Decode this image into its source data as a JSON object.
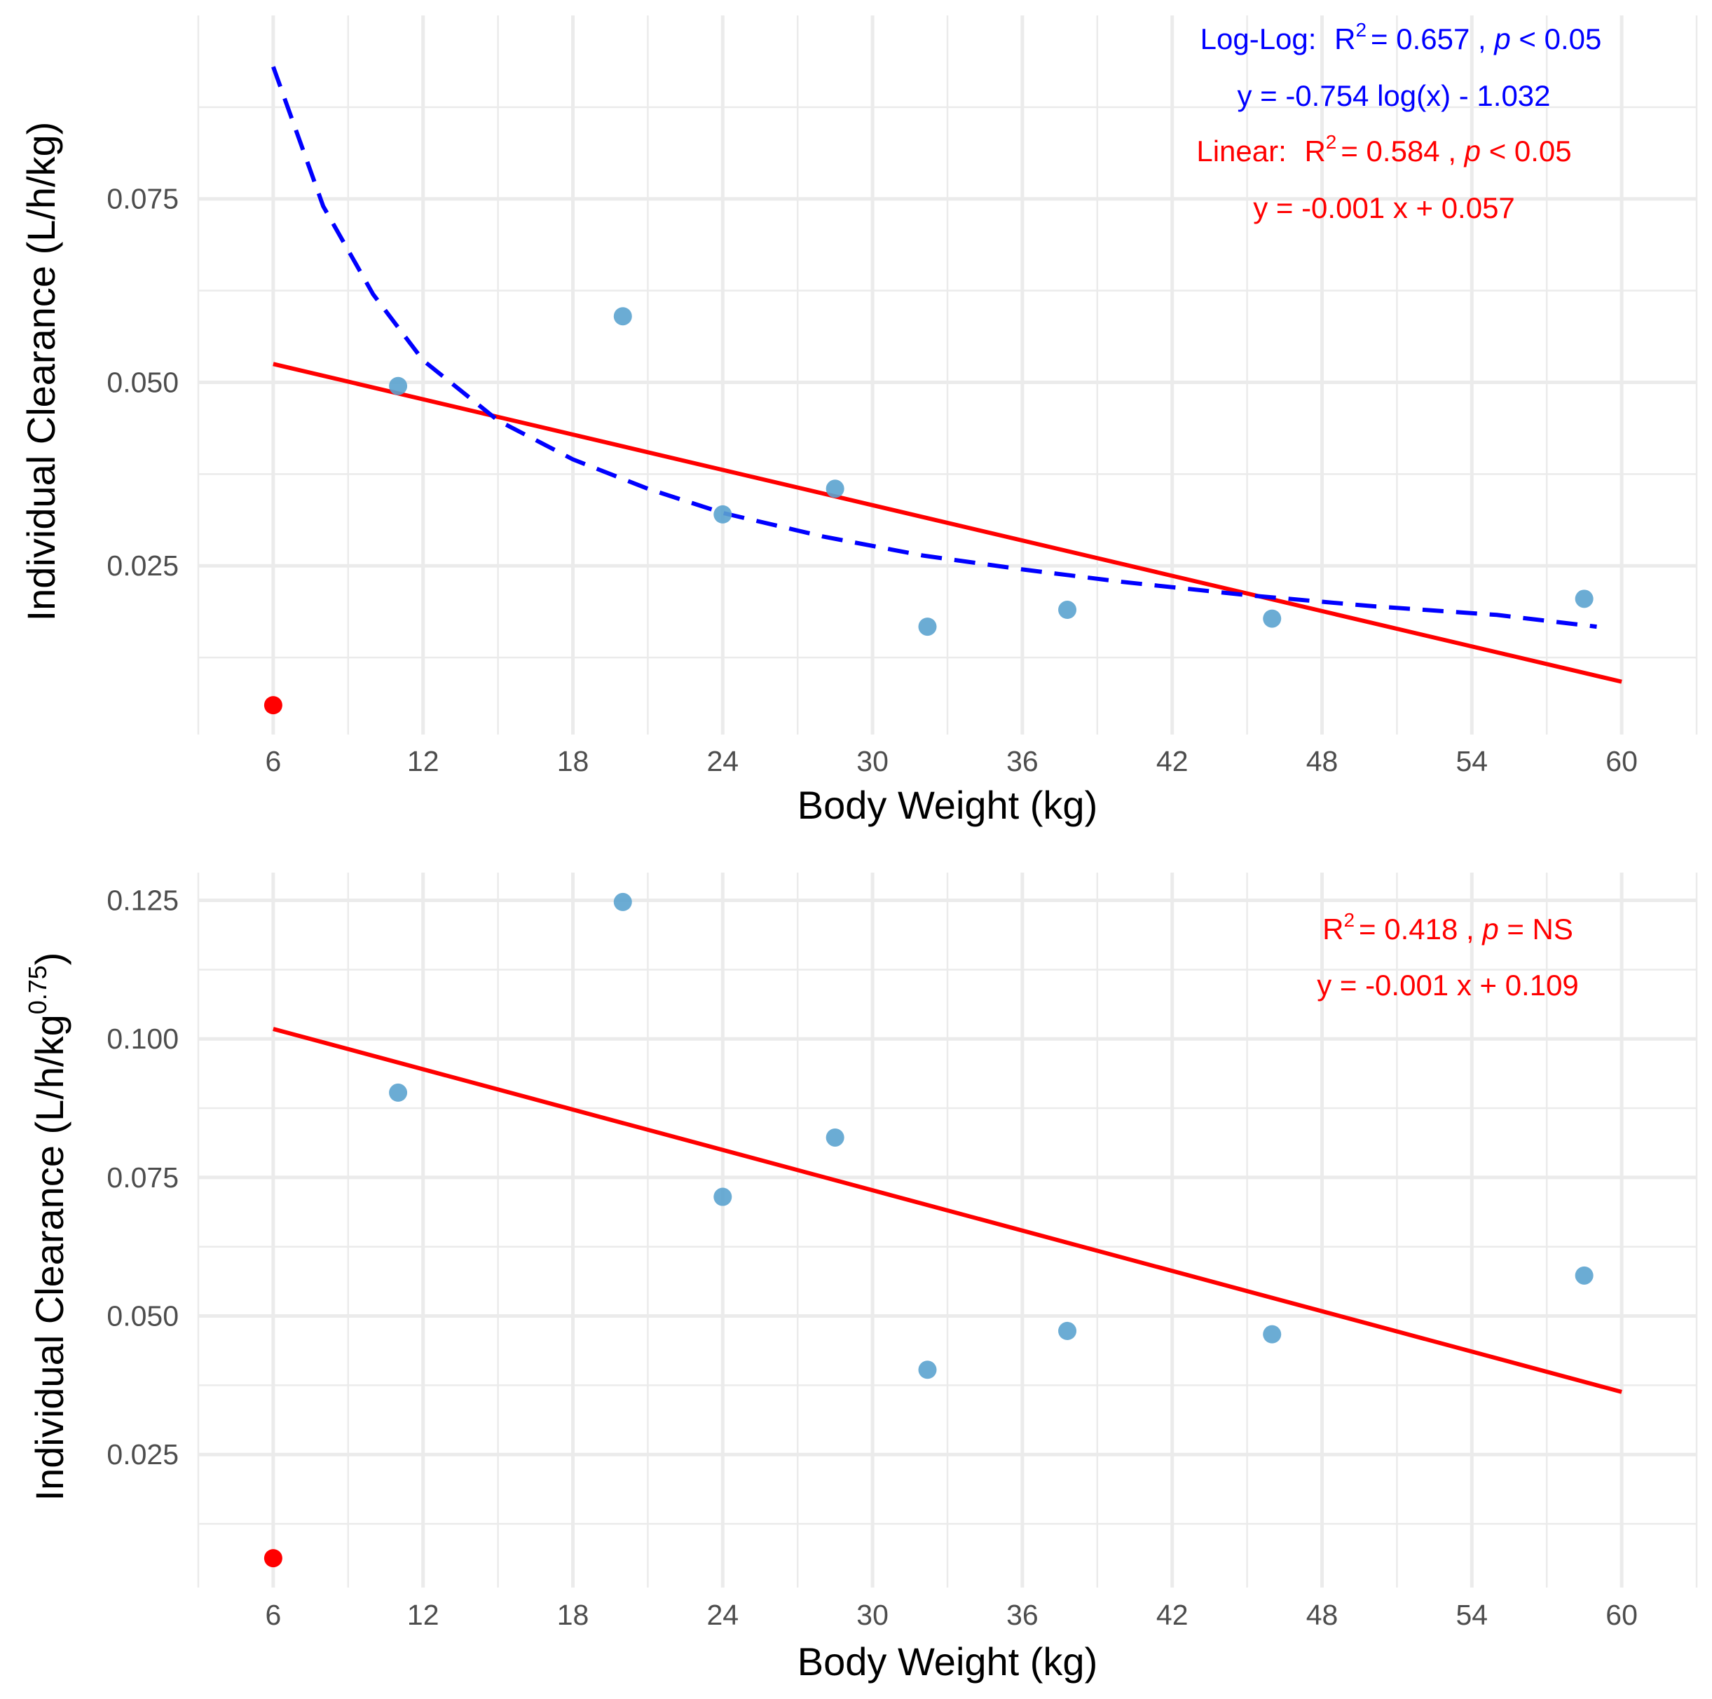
{
  "chart_data": [
    {
      "type": "scatter",
      "xlabel": "Body Weight (kg)",
      "ylabel": "Individual Clearance (L/h/kg)",
      "xlim": [
        3,
        63
      ],
      "ylim": [
        0.002,
        0.1
      ],
      "x_ticks": [
        6,
        12,
        18,
        24,
        30,
        36,
        42,
        48,
        54,
        60
      ],
      "x_tick_labels": [
        "6",
        "12",
        "18",
        "24",
        "30",
        "36",
        "42",
        "48",
        "54",
        "60"
      ],
      "y_ticks": [
        0.025,
        0.05,
        0.075
      ],
      "y_tick_labels": [
        "0.025",
        "0.050",
        "0.075"
      ],
      "grid": true,
      "colors": {
        "points": "#5ba3cf",
        "outlier": "#ff0000",
        "linear": "#ff0000",
        "loglog": "#0000ff"
      },
      "points": [
        {
          "x": 11,
          "y": 0.0495
        },
        {
          "x": 20,
          "y": 0.059
        },
        {
          "x": 24,
          "y": 0.032
        },
        {
          "x": 28.5,
          "y": 0.0355
        },
        {
          "x": 32.2,
          "y": 0.0167
        },
        {
          "x": 37.8,
          "y": 0.019
        },
        {
          "x": 46,
          "y": 0.0178
        },
        {
          "x": 58.5,
          "y": 0.0205
        }
      ],
      "outlier_points": [
        {
          "x": 6,
          "y": 0.006
        }
      ],
      "linear_fit": {
        "x": [
          6,
          60
        ],
        "y": [
          0.0525,
          0.0092
        ]
      },
      "loglog_fit": {
        "x": [
          6,
          8,
          10,
          12,
          15,
          18,
          21,
          24,
          28,
          32,
          36,
          40,
          45,
          50,
          55,
          59
        ],
        "y": [
          0.093,
          0.074,
          0.062,
          0.053,
          0.0448,
          0.0395,
          0.0355,
          0.0322,
          0.029,
          0.0264,
          0.0245,
          0.0228,
          0.021,
          0.0195,
          0.0183,
          0.0167
        ]
      },
      "annotations": {
        "loglog_stats": {
          "label": "Log-Log:",
          "r": "R",
          "sup": "2",
          "value": "= 0.657 ,",
          "p": "p",
          "pval": "< 0.05"
        },
        "loglog_eq": "y = -0.754 log(x) - 1.032",
        "linear_stats": {
          "label": "Linear:",
          "r": "R",
          "sup": "2",
          "value": "= 0.584 ,",
          "p": "p",
          "pval": "< 0.05"
        },
        "linear_eq": "y = -0.001 x + 0.057"
      }
    },
    {
      "type": "scatter",
      "xlabel": "Body Weight (kg)",
      "ylabel_main": "Individual Clearance (L/h/kg",
      "ylabel_sup": "0.75",
      "ylabel_end": ")",
      "xlim": [
        3,
        63
      ],
      "ylim": [
        0.001,
        0.13
      ],
      "x_ticks": [
        6,
        12,
        18,
        24,
        30,
        36,
        42,
        48,
        54,
        60
      ],
      "x_tick_labels": [
        "6",
        "12",
        "18",
        "24",
        "30",
        "36",
        "42",
        "48",
        "54",
        "60"
      ],
      "y_ticks": [
        0.025,
        0.05,
        0.075,
        0.1,
        0.125
      ],
      "y_tick_labels": [
        "0.025",
        "0.050",
        "0.075",
        "0.100",
        "0.125"
      ],
      "grid": true,
      "colors": {
        "points": "#5ba3cf",
        "outlier": "#ff0000",
        "linear": "#ff0000"
      },
      "points": [
        {
          "x": 11,
          "y": 0.0903
        },
        {
          "x": 20,
          "y": 0.1247
        },
        {
          "x": 24,
          "y": 0.0715
        },
        {
          "x": 28.5,
          "y": 0.0822
        },
        {
          "x": 32.2,
          "y": 0.0403
        },
        {
          "x": 37.8,
          "y": 0.0473
        },
        {
          "x": 46,
          "y": 0.0467
        },
        {
          "x": 58.5,
          "y": 0.0573
        }
      ],
      "outlier_points": [
        {
          "x": 6,
          "y": 0.0063
        }
      ],
      "linear_fit": {
        "x": [
          6,
          60
        ],
        "y": [
          0.1018,
          0.0363
        ]
      },
      "annotations": {
        "stats": {
          "r": "R",
          "sup": "2",
          "value": "= 0.418 ,",
          "p": "p",
          "pval": "= NS"
        },
        "eq": "y = -0.001 x + 0.109"
      }
    }
  ]
}
